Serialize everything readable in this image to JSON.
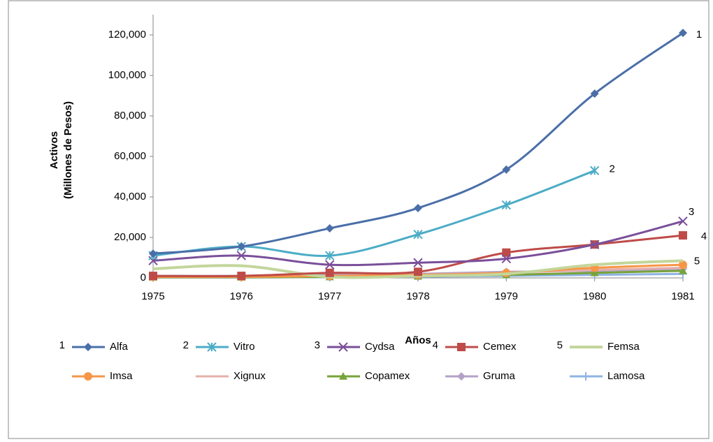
{
  "chart_data": {
    "type": "line",
    "y_label_lines": [
      "Activos",
      "(Millones de Pesos)"
    ],
    "x_label": "Años",
    "categories": [
      "1975",
      "1976",
      "1977",
      "1978",
      "1979",
      "1980",
      "1981"
    ],
    "ylim": [
      0,
      130000
    ],
    "yticks": [
      0,
      {
        "value": 20000,
        "label": "20,000"
      },
      {
        "value": 40000,
        "label": "40,000"
      },
      {
        "value": 60000,
        "label": "60,000"
      },
      {
        "value": 80000,
        "label": "80,000"
      },
      {
        "value": 100000,
        "label": "100,000"
      },
      {
        "value": 120000,
        "label": "120,000"
      }
    ],
    "smooth": true,
    "rank_labels": [
      "1",
      "2",
      "3",
      "4",
      "5"
    ],
    "series": [
      {
        "name": "Alfa",
        "color": "#4a6fa8",
        "marker": "diamond",
        "values": [
          12000,
          15500,
          24500,
          34500,
          53500,
          91000,
          121000
        ]
      },
      {
        "name": "Vitro",
        "color": "#4bacc6",
        "marker": "star",
        "values": [
          11000,
          15500,
          11000,
          21500,
          36000,
          53000,
          null
        ]
      },
      {
        "name": "Cydsa",
        "color": "#7a4f9a",
        "marker": "x",
        "values": [
          8500,
          11000,
          6500,
          7500,
          9500,
          16500,
          28000
        ]
      },
      {
        "name": "Cemex",
        "color": "#be4b48",
        "marker": "square",
        "values": [
          1000,
          1000,
          2500,
          3000,
          12500,
          16500,
          21000
        ]
      },
      {
        "name": "Femsa",
        "color": "#c3d69b",
        "marker": "none",
        "values": [
          4500,
          6000,
          500,
          1000,
          2000,
          6500,
          8500
        ]
      },
      {
        "name": "Imsa",
        "color": "#f79646",
        "marker": "circle",
        "values": [
          500,
          500,
          1000,
          1500,
          2500,
          5000,
          6500
        ]
      },
      {
        "name": "Xignux",
        "color": "#e6b0a8",
        "marker": "dash",
        "values": [
          500,
          500,
          1000,
          1500,
          2500,
          4000,
          5000
        ]
      },
      {
        "name": "Copamex",
        "color": "#77a33a",
        "marker": "triangle",
        "values": [
          300,
          300,
          500,
          800,
          1500,
          2500,
          3500
        ]
      },
      {
        "name": "Gruma",
        "color": "#b3a2c7",
        "marker": "diamond",
        "values": [
          1000,
          1000,
          1500,
          2000,
          3000,
          3500,
          4500
        ]
      },
      {
        "name": "Lamosa",
        "color": "#8eb4e3",
        "marker": "plus",
        "values": [
          200,
          200,
          400,
          600,
          1000,
          1500,
          2000
        ]
      }
    ]
  }
}
